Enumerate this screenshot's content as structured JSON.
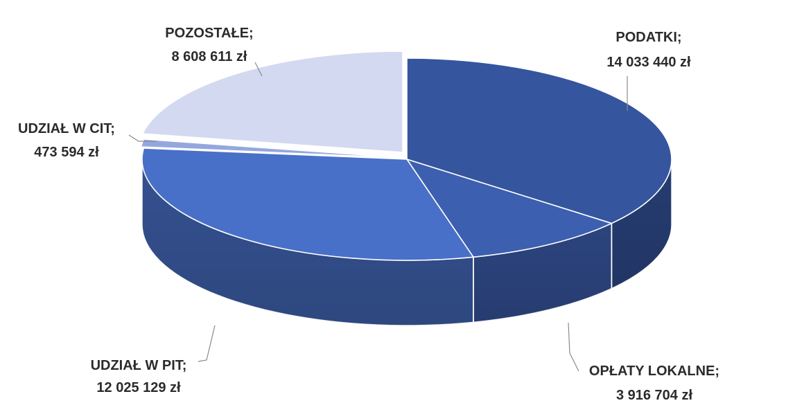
{
  "chart_data": {
    "type": "pie",
    "title": "",
    "unit": "zł",
    "legend": "none",
    "categories": [
      "PODATKI",
      "OPŁATY LOKALNE",
      "UDZIAŁ W PIT",
      "UDZIAŁ W CIT",
      "POZOSTAŁE"
    ],
    "values": [
      14033440,
      3916704,
      12025129,
      473594,
      8608611
    ],
    "labels": [
      {
        "name": "PODATKI;",
        "value": "14 033 440 zł"
      },
      {
        "name": "OPŁATY LOKALNE;",
        "value": "3 916 704 zł"
      },
      {
        "name": "UDZIAŁ W PIT;",
        "value": "12 025 129 zł"
      },
      {
        "name": "UDZIAŁ W CIT;",
        "value": "473 594 zł"
      },
      {
        "name": "POZOSTAŁE;",
        "value": "8 608 611 zł"
      }
    ],
    "colors": {
      "PODATKI": "#35559e",
      "OPŁATY LOKALNE": "#3d5fb0",
      "UDZIAŁ W PIT": "#4870c8",
      "UDZIAŁ W CIT": "#94a7dd",
      "POZOSTAŁE": "#d3d9f0"
    },
    "style": "3d-exploded-pie"
  }
}
